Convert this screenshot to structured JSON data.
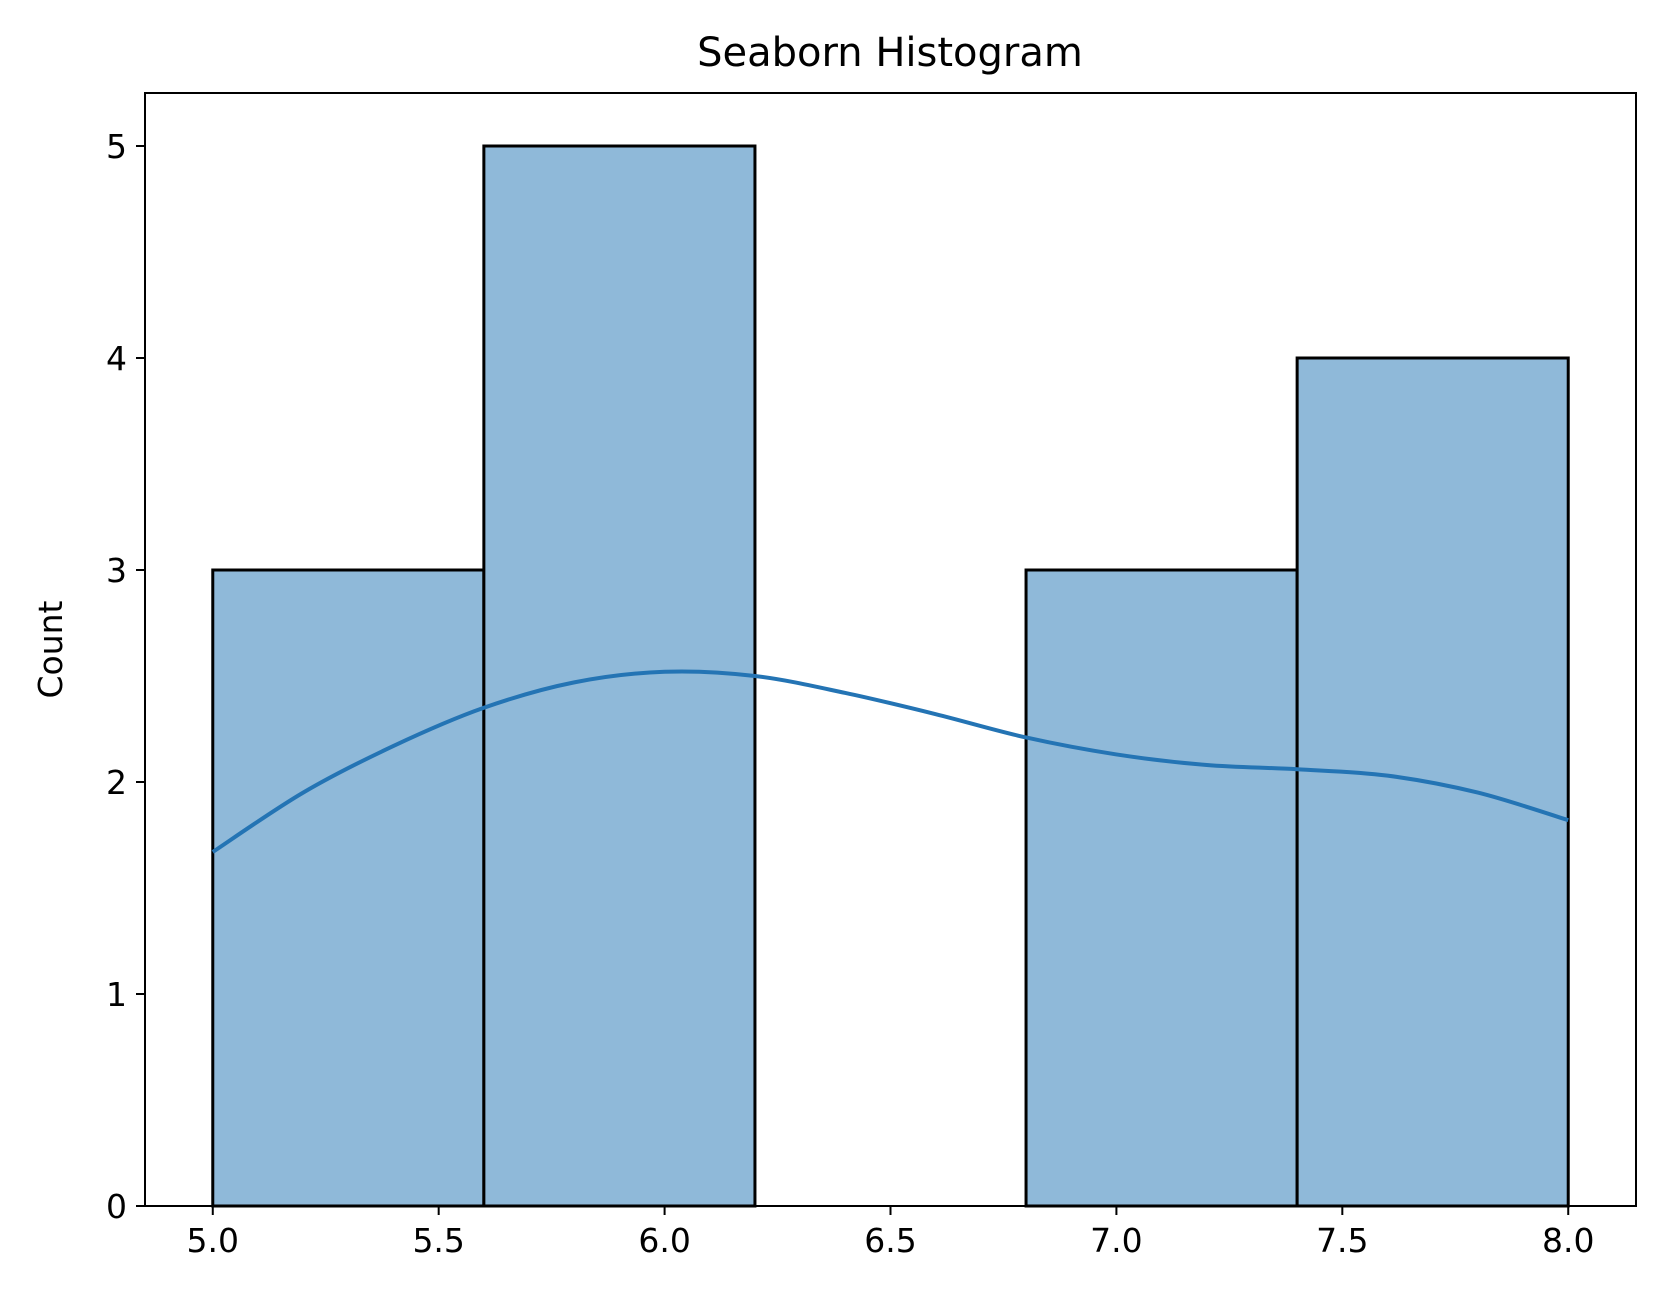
{
  "chart_data": {
    "type": "bar",
    "title": "Seaborn Histogram",
    "xlabel": "",
    "ylabel": "Count",
    "bins": [
      {
        "x0": 5.0,
        "x1": 5.6,
        "count": 3
      },
      {
        "x0": 5.6,
        "x1": 6.2,
        "count": 5
      },
      {
        "x0": 6.2,
        "x1": 6.8,
        "count": 0
      },
      {
        "x0": 6.8,
        "x1": 7.4,
        "count": 3
      },
      {
        "x0": 7.4,
        "x1": 8.0,
        "count": 4
      }
    ],
    "kde": {
      "x": [
        5.0,
        5.2,
        5.4,
        5.6,
        5.8,
        6.0,
        6.2,
        6.4,
        6.6,
        6.8,
        7.0,
        7.2,
        7.4,
        7.6,
        7.8,
        8.0
      ],
      "y": [
        1.67,
        1.95,
        2.17,
        2.35,
        2.47,
        2.52,
        2.5,
        2.42,
        2.32,
        2.21,
        2.13,
        2.08,
        2.06,
        2.03,
        1.95,
        1.82
      ]
    },
    "xlim": [
      4.85,
      8.15
    ],
    "ylim": [
      0,
      5.25
    ],
    "xticks": [
      "5.0",
      "5.5",
      "6.0",
      "6.5",
      "7.0",
      "7.5",
      "8.0"
    ],
    "yticks": [
      "0",
      "1",
      "2",
      "3",
      "4",
      "5"
    ],
    "grid": false,
    "colors": {
      "bar_fill": "#8fb9d9",
      "bar_edge": "#000000",
      "kde_line": "#2474b4"
    }
  }
}
